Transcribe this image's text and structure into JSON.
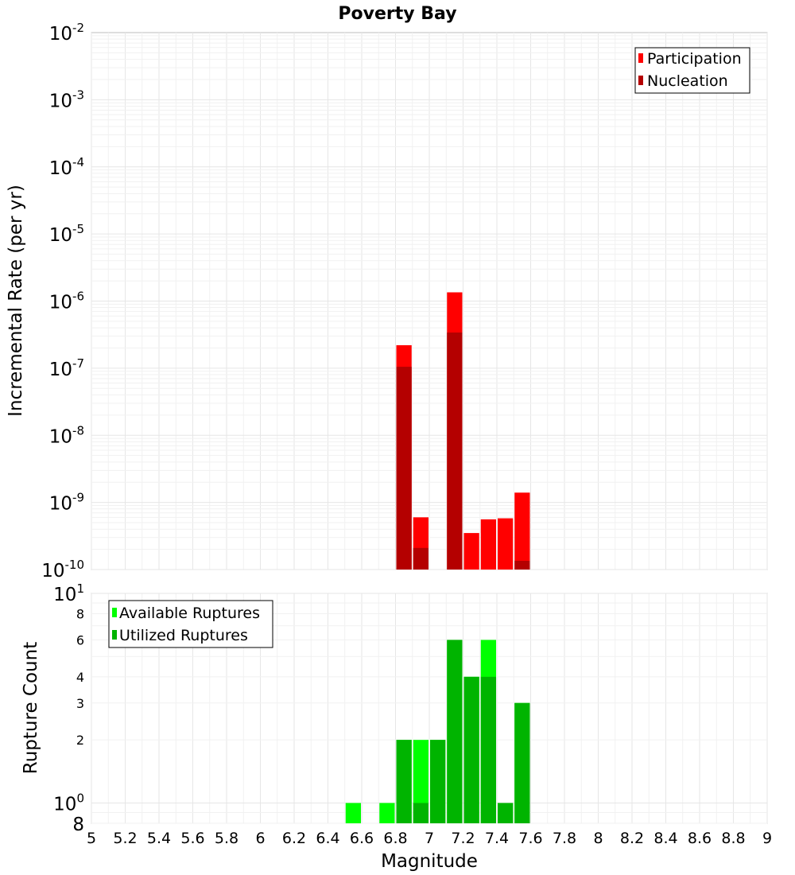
{
  "chart_data": [
    {
      "type": "bar",
      "panel": "top",
      "title": "Poverty Bay",
      "ylabel": "Incremental Rate (per yr)",
      "xlabel": "",
      "y_scale": "log",
      "ylim": [
        1e-10,
        0.01
      ],
      "xlim": [
        5,
        9
      ],
      "bar_width": 0.1,
      "y_ticks": [
        {
          "base": "10",
          "exp": "-2"
        },
        {
          "base": "10",
          "exp": "-3"
        },
        {
          "base": "10",
          "exp": "-4"
        },
        {
          "base": "10",
          "exp": "-5"
        },
        {
          "base": "10",
          "exp": "-6"
        },
        {
          "base": "10",
          "exp": "-7"
        },
        {
          "base": "10",
          "exp": "-8"
        },
        {
          "base": "10",
          "exp": "-9"
        },
        {
          "base": "10",
          "exp": "-10"
        }
      ],
      "legend": {
        "position": "top-right"
      },
      "series": [
        {
          "name": "Participation",
          "color": "#ff0000",
          "x": [
            6.85,
            6.95,
            7.15,
            7.25,
            7.35,
            7.45,
            7.55
          ],
          "values": [
            2.2e-07,
            6e-10,
            1.35e-06,
            3.5e-10,
            5.6e-10,
            5.8e-10,
            1.4e-09
          ]
        },
        {
          "name": "Nucleation",
          "color": "#b40000",
          "x": [
            6.85,
            6.95,
            7.15,
            7.55
          ],
          "values": [
            1.05e-07,
            2.1e-10,
            3.4e-07,
            1.35e-10
          ]
        }
      ]
    },
    {
      "type": "bar",
      "panel": "bottom",
      "ylabel": "Rupture Count",
      "xlabel": "Magnitude",
      "y_scale": "log",
      "ylim": [
        0.8,
        10
      ],
      "xlim": [
        5,
        9
      ],
      "bar_width": 0.1,
      "x_ticks": [
        "5",
        "5.2",
        "5.4",
        "5.6",
        "5.8",
        "6",
        "6.2",
        "6.4",
        "6.6",
        "6.8",
        "7",
        "7.2",
        "7.4",
        "7.6",
        "7.8",
        "8",
        "8.2",
        "8.4",
        "8.6",
        "8.8",
        "9"
      ],
      "y_ticks": [
        {
          "value": 10,
          "base": "10",
          "exp": "1"
        },
        {
          "value": 8,
          "label": "8"
        },
        {
          "value": 6,
          "label": "6"
        },
        {
          "value": 4,
          "label": "4"
        },
        {
          "value": 3,
          "label": "3"
        },
        {
          "value": 2,
          "label": "2"
        },
        {
          "value": 1,
          "base": "10",
          "exp": "0"
        },
        {
          "value": 0.8,
          "label": "8"
        }
      ],
      "legend": {
        "position": "top-left"
      },
      "series": [
        {
          "name": "Available Ruptures",
          "color": "#00ff00",
          "x": [
            6.55,
            6.75,
            6.85,
            6.95,
            7.05,
            7.15,
            7.25,
            7.35,
            7.45,
            7.55
          ],
          "values": [
            1,
            1,
            2,
            2,
            2,
            6,
            4,
            6,
            1,
            3
          ]
        },
        {
          "name": "Utilized Ruptures",
          "color": "#00b400",
          "x": [
            6.85,
            6.95,
            7.05,
            7.15,
            7.25,
            7.35,
            7.45,
            7.55
          ],
          "values": [
            2,
            1,
            2,
            6,
            4,
            4,
            1,
            3
          ]
        }
      ]
    }
  ]
}
